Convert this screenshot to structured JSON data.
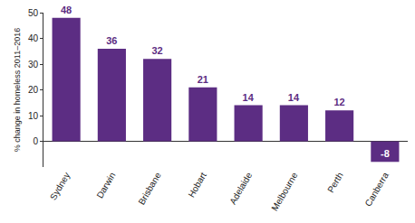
{
  "chart_data": {
    "type": "bar",
    "y_label": "% change in homeless 2011–2016",
    "categories": [
      "Sydney",
      "Darwin",
      "Brisbane",
      "Hobart",
      "Adelaide",
      "Melbourne",
      "Perth",
      "Canberra"
    ],
    "values": [
      48,
      36,
      32,
      21,
      14,
      14,
      12,
      -8
    ],
    "color": "#5c2d83",
    "ylim": [
      -10,
      50
    ],
    "yticks": [
      0,
      10,
      20,
      30,
      40,
      50
    ],
    "grid": false,
    "data_labels": true
  }
}
